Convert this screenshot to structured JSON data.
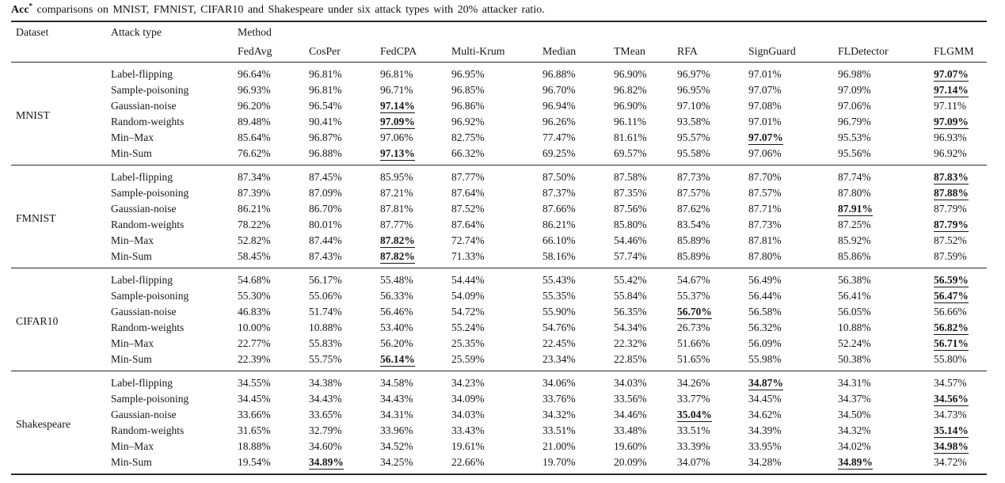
{
  "title": {
    "acc": "Acc",
    "superscript": "*",
    "rest": " comparisons on MNIST, FMNIST, CIFAR10 and Shakespeare under six attack types with 20% attacker ratio."
  },
  "colors": {
    "text": "#111111",
    "rule": "#2a2a2a",
    "background": "#ffffff"
  },
  "table": {
    "headers": {
      "dataset": "Dataset",
      "attack_type": "Attack type",
      "method_group": "Method",
      "methods": [
        "FedAvg",
        "CosPer",
        "FedCPA",
        "Multi-Krum",
        "Median",
        "TMean",
        "RFA",
        "SignGuard",
        "FLDetector",
        "FLGMM"
      ]
    },
    "groups": [
      {
        "dataset": "MNIST",
        "rows": [
          {
            "attack": "Label-flipping",
            "values": [
              "96.64%",
              "96.81%",
              "96.81%",
              "96.95%",
              "96.88%",
              "96.90%",
              "96.97%",
              "97.01%",
              "96.98%",
              "97.07%"
            ],
            "best": [
              9
            ]
          },
          {
            "attack": "Sample-poisoning",
            "values": [
              "96.93%",
              "96.81%",
              "96.71%",
              "96.85%",
              "96.70%",
              "96.82%",
              "96.95%",
              "97.07%",
              "97.09%",
              "97.14%"
            ],
            "best": [
              9
            ]
          },
          {
            "attack": "Gaussian-noise",
            "values": [
              "96.20%",
              "96.54%",
              "97.14%",
              "96.86%",
              "96.94%",
              "96.90%",
              "97.10%",
              "97.08%",
              "97.06%",
              "97.11%"
            ],
            "best": [
              2
            ]
          },
          {
            "attack": "Random-weights",
            "values": [
              "89.48%",
              "90.41%",
              "97.09%",
              "96.92%",
              "96.26%",
              "96.11%",
              "93.58%",
              "97.01%",
              "96.79%",
              "97.09%"
            ],
            "best": [
              2,
              9
            ]
          },
          {
            "attack": "Min–Max",
            "values": [
              "85.64%",
              "96.87%",
              "97.06%",
              "82.75%",
              "77.47%",
              "81.61%",
              "95.57%",
              "97.07%",
              "95.53%",
              "96.93%"
            ],
            "best": [
              7
            ]
          },
          {
            "attack": "Min-Sum",
            "values": [
              "76.62%",
              "96.88%",
              "97.13%",
              "66.32%",
              "69.25%",
              "69.57%",
              "95.58%",
              "97.06%",
              "95.56%",
              "96.92%"
            ],
            "best": [
              2
            ]
          }
        ]
      },
      {
        "dataset": "FMNIST",
        "rows": [
          {
            "attack": "Label-flipping",
            "values": [
              "87.34%",
              "87.45%",
              "85.95%",
              "87.77%",
              "87.50%",
              "87.58%",
              "87.73%",
              "87.70%",
              "87.74%",
              "87.83%"
            ],
            "best": [
              9
            ]
          },
          {
            "attack": "Sample-poisoning",
            "values": [
              "87.39%",
              "87.09%",
              "87.21%",
              "87.64%",
              "87.37%",
              "87.35%",
              "87.57%",
              "87.57%",
              "87.80%",
              "87.88%"
            ],
            "best": [
              9
            ]
          },
          {
            "attack": "Gaussian-noise",
            "values": [
              "86.21%",
              "86.70%",
              "87.81%",
              "87.52%",
              "87.66%",
              "87.56%",
              "87.62%",
              "87.71%",
              "87.91%",
              "87.79%"
            ],
            "best": [
              8
            ]
          },
          {
            "attack": "Random-weights",
            "values": [
              "78.22%",
              "80.01%",
              "87.77%",
              "87.64%",
              "86.21%",
              "85.80%",
              "83.54%",
              "87.73%",
              "87.25%",
              "87.79%"
            ],
            "best": [
              9
            ]
          },
          {
            "attack": "Min–Max",
            "values": [
              "52.82%",
              "87.44%",
              "87.82%",
              "72.74%",
              "66.10%",
              "54.46%",
              "85.89%",
              "87.81%",
              "85.92%",
              "87.52%"
            ],
            "best": [
              2
            ]
          },
          {
            "attack": "Min-Sum",
            "values": [
              "58.45%",
              "87.43%",
              "87.82%",
              "71.33%",
              "58.16%",
              "57.74%",
              "85.89%",
              "87.80%",
              "85.86%",
              "87.59%"
            ],
            "best": [
              2
            ]
          }
        ]
      },
      {
        "dataset": "CIFAR10",
        "rows": [
          {
            "attack": "Label-flipping",
            "values": [
              "54.68%",
              "56.17%",
              "55.48%",
              "54.44%",
              "55.43%",
              "55.42%",
              "54.67%",
              "56.49%",
              "56.38%",
              "56.59%"
            ],
            "best": [
              9
            ]
          },
          {
            "attack": "Sample-poisoning",
            "values": [
              "55.30%",
              "55.06%",
              "56.33%",
              "54.09%",
              "55.35%",
              "55.84%",
              "55.37%",
              "56.44%",
              "56.41%",
              "56.47%"
            ],
            "best": [
              9
            ]
          },
          {
            "attack": "Gaussian-noise",
            "values": [
              "46.83%",
              "51.74%",
              "56.46%",
              "54.72%",
              "55.90%",
              "56.35%",
              "56.70%",
              "56.58%",
              "56.05%",
              "56.66%"
            ],
            "best": [
              6
            ]
          },
          {
            "attack": "Random-weights",
            "values": [
              "10.00%",
              "10.88%",
              "53.40%",
              "55.24%",
              "54.76%",
              "54.34%",
              "26.73%",
              "56.32%",
              "10.88%",
              "56.82%"
            ],
            "best": [
              9
            ]
          },
          {
            "attack": "Min–Max",
            "values": [
              "22.77%",
              "55.83%",
              "56.20%",
              "25.35%",
              "22.45%",
              "22.32%",
              "51.66%",
              "56.09%",
              "52.24%",
              "56.71%"
            ],
            "best": [
              9
            ]
          },
          {
            "attack": "Min-Sum",
            "values": [
              "22.39%",
              "55.75%",
              "56.14%",
              "25.59%",
              "23.34%",
              "22.85%",
              "51.65%",
              "55.98%",
              "50.38%",
              "55.80%"
            ],
            "best": [
              2
            ]
          }
        ]
      },
      {
        "dataset": "Shakespeare",
        "rows": [
          {
            "attack": "Label-flipping",
            "values": [
              "34.55%",
              "34.38%",
              "34.58%",
              "34.23%",
              "34.06%",
              "34.03%",
              "34.26%",
              "34.87%",
              "34.31%",
              "34.57%"
            ],
            "best": [
              7
            ]
          },
          {
            "attack": "Sample-poisoning",
            "values": [
              "34.45%",
              "34.43%",
              "34.43%",
              "34.09%",
              "33.76%",
              "33.56%",
              "33.77%",
              "34.45%",
              "34.37%",
              "34.56%"
            ],
            "best": [
              9
            ]
          },
          {
            "attack": "Gaussian-noise",
            "values": [
              "33.66%",
              "33.65%",
              "34.31%",
              "34.03%",
              "34.32%",
              "34.46%",
              "35.04%",
              "34.62%",
              "34.50%",
              "34.73%"
            ],
            "best": [
              6
            ]
          },
          {
            "attack": "Random-weights",
            "values": [
              "31.65%",
              "32.79%",
              "33.96%",
              "33.43%",
              "33.51%",
              "33.48%",
              "33.51%",
              "34.39%",
              "34.32%",
              "35.14%"
            ],
            "best": [
              9
            ]
          },
          {
            "attack": "Min–Max",
            "values": [
              "18.88%",
              "34.60%",
              "34.52%",
              "19.61%",
              "21.00%",
              "19.60%",
              "33.39%",
              "33.95%",
              "34.02%",
              "34.98%"
            ],
            "best": [
              9
            ]
          },
          {
            "attack": "Min-Sum",
            "values": [
              "19.54%",
              "34.89%",
              "34.25%",
              "22.66%",
              "19.70%",
              "20.09%",
              "34.07%",
              "34.28%",
              "34.89%",
              "34.72%"
            ],
            "best": [
              1,
              8
            ]
          }
        ]
      }
    ]
  }
}
